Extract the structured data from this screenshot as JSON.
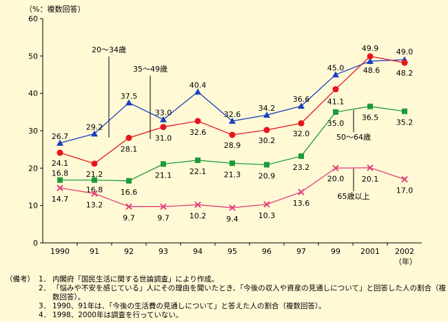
{
  "chart_data": {
    "type": "line",
    "unit_label": "（%：複数回答）",
    "x_unit_label": "（年）",
    "categories": [
      "1990",
      "91",
      "92",
      "93",
      "94",
      "95",
      "96",
      "97",
      "99",
      "2001",
      "2002"
    ],
    "ylim": [
      0,
      60
    ],
    "yticks": [
      "0",
      "10",
      "20",
      "30",
      "40",
      "50",
      "60"
    ],
    "series": [
      {
        "name": "20～34歳",
        "color": "#1a3fbf",
        "marker": "triangle",
        "values": [
          26.7,
          29.2,
          37.5,
          33.0,
          40.4,
          32.6,
          34.2,
          36.6,
          45.0,
          48.6,
          49.0
        ],
        "labels": [
          "26.7",
          "29.2",
          "37.5",
          "33.0",
          "40.4",
          "32.6",
          "34.2",
          "36.6",
          "45.0",
          "48.6",
          "49.0"
        ]
      },
      {
        "name": "35～49歳",
        "color": "#e8141c",
        "marker": "circle",
        "values": [
          24.1,
          21.2,
          28.1,
          31.0,
          32.6,
          28.9,
          30.2,
          32.0,
          41.1,
          49.9,
          48.2
        ],
        "labels": [
          "24.1",
          "21.2",
          "28.1",
          "31.0",
          "32.6",
          "28.9",
          "30.2",
          "32.0",
          "41.1",
          "49.9",
          "48.2"
        ]
      },
      {
        "name": "50～64歳",
        "color": "#1d9a3a",
        "marker": "square",
        "values": [
          16.8,
          16.8,
          16.6,
          21.1,
          22.1,
          21.3,
          20.9,
          23.2,
          35.0,
          36.5,
          35.2
        ],
        "labels": [
          "16.8",
          "16.8",
          "16.6",
          "21.1",
          "22.1",
          "21.3",
          "20.9",
          "23.2",
          "35.0",
          "36.5",
          "35.2"
        ]
      },
      {
        "name": "65歳以上",
        "color": "#e0407a",
        "marker": "cross",
        "values": [
          14.7,
          13.2,
          9.7,
          9.7,
          10.2,
          9.4,
          10.3,
          13.6,
          20.0,
          20.1,
          17.0
        ],
        "labels": [
          "14.7",
          "13.2",
          "9.7",
          "9.7",
          "10.2",
          "9.4",
          "10.3",
          "13.6",
          "20.0",
          "20.1",
          "17.0"
        ]
      }
    ]
  },
  "notes": {
    "prefix": "（備考）",
    "items": [
      {
        "num": "1．",
        "text": "内閣府「国民生活に関する世論調査」により作成。"
      },
      {
        "num": "2．",
        "text": "「悩みや不安を感じている」人にその理由を聞いたとき、「今後の収入や資産の見通しについて」と回答した人の割合（複数回答）。"
      },
      {
        "num": "3．",
        "text": "1990、91年は、「今後の生活費の見通しについて」と答えた人の割合（複数回答）。"
      },
      {
        "num": "4．",
        "text": "1998、2000年は調査を行っていない。"
      }
    ]
  }
}
